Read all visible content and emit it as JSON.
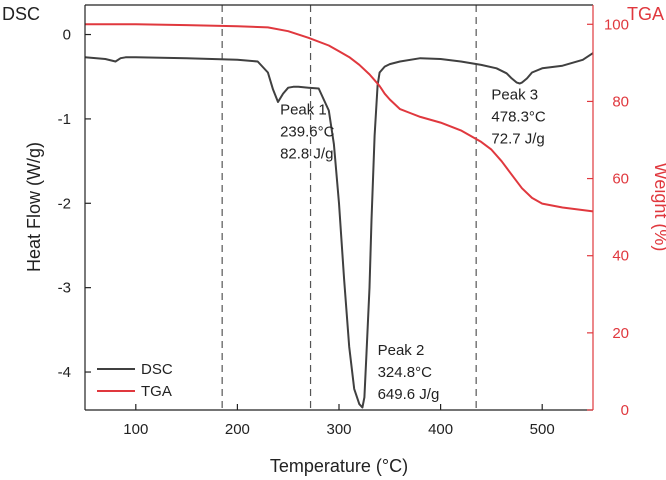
{
  "chart_data": {
    "type": "line",
    "xlabel": "Temperature (°C)",
    "ylabel_left": "Heat Flow (W/g)",
    "ylabel_right": "Weight (%)",
    "corner_label_left": "DSC",
    "corner_label_right": "TGA",
    "xlim": [
      50,
      550
    ],
    "ylim_left": [
      -4.45,
      0.35
    ],
    "ylim_right": [
      0,
      105
    ],
    "x_ticks": [
      100,
      200,
      300,
      400,
      500
    ],
    "y_left_ticks": [
      0,
      -1,
      -2,
      -3,
      -4
    ],
    "y_right_ticks": [
      100,
      80,
      60,
      40,
      20,
      0
    ],
    "grid": false,
    "legend_position": "bottom-left",
    "colors": {
      "dsc": "#404040",
      "tga": "#e0383e",
      "axis_right": "#e0383e"
    },
    "series": [
      {
        "name": "DSC",
        "axis": "left",
        "x": [
          50,
          70,
          80,
          85,
          90,
          100,
          150,
          200,
          220,
          230,
          235,
          240,
          245,
          250,
          255,
          260,
          270,
          280,
          290,
          295,
          300,
          305,
          310,
          315,
          320,
          323,
          325,
          327,
          330,
          332,
          335,
          338,
          340,
          345,
          350,
          360,
          380,
          400,
          420,
          440,
          455,
          465,
          470,
          475,
          478,
          480,
          485,
          490,
          500,
          520,
          540,
          550
        ],
        "values": [
          -0.27,
          -0.29,
          -0.32,
          -0.28,
          -0.27,
          -0.27,
          -0.28,
          -0.3,
          -0.32,
          -0.45,
          -0.65,
          -0.8,
          -0.7,
          -0.63,
          -0.62,
          -0.62,
          -0.63,
          -0.64,
          -0.9,
          -1.3,
          -2.0,
          -2.9,
          -3.7,
          -4.2,
          -4.38,
          -4.42,
          -4.3,
          -3.8,
          -3.0,
          -2.2,
          -1.2,
          -0.6,
          -0.45,
          -0.38,
          -0.35,
          -0.32,
          -0.28,
          -0.29,
          -0.32,
          -0.36,
          -0.4,
          -0.46,
          -0.52,
          -0.57,
          -0.58,
          -0.57,
          -0.52,
          -0.45,
          -0.4,
          -0.37,
          -0.3,
          -0.22
        ]
      },
      {
        "name": "TGA",
        "axis": "right",
        "x": [
          50,
          100,
          150,
          200,
          230,
          250,
          270,
          290,
          300,
          310,
          320,
          330,
          335,
          340,
          345,
          350,
          360,
          370,
          380,
          400,
          420,
          440,
          450,
          460,
          470,
          480,
          490,
          500,
          520,
          550
        ],
        "values": [
          100,
          100,
          99.8,
          99.5,
          99.2,
          98.2,
          96.5,
          94.5,
          93.0,
          91.5,
          89.5,
          87.0,
          85.5,
          84.0,
          82.0,
          80.5,
          78.0,
          77.0,
          76.0,
          74.5,
          72.5,
          69.5,
          67.5,
          64.5,
          61.0,
          57.5,
          55.0,
          53.5,
          52.5,
          51.5
        ]
      }
    ],
    "reference_lines_x": [
      185,
      272,
      435
    ],
    "annotations": [
      {
        "lines": [
          "Peak 1",
          "239.6°C",
          "82.8 J/g"
        ],
        "x": 242,
        "y": -0.95
      },
      {
        "lines": [
          "Peak 2",
          "324.8°C",
          "649.6 J/g"
        ],
        "x": 338,
        "y": -3.8
      },
      {
        "lines": [
          "Peak 3",
          "478.3°C",
          "72.7 J/g"
        ],
        "x": 450,
        "y": -0.77
      }
    ]
  }
}
